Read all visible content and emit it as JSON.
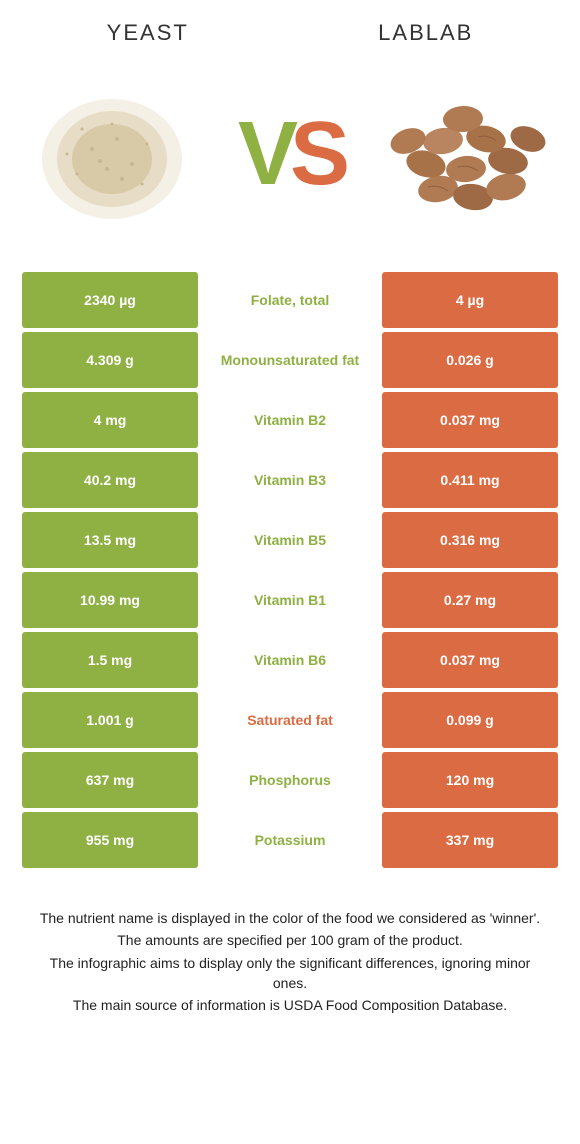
{
  "foods": {
    "left": {
      "name": "YEAST",
      "color": "#8fb043"
    },
    "right": {
      "name": "LABLAB",
      "color": "#db6b42"
    }
  },
  "vs": {
    "v": "V",
    "s": "S"
  },
  "rows": [
    {
      "left": "2340 µg",
      "label": "Folate, total",
      "right": "4 µg",
      "winner": "left"
    },
    {
      "left": "4.309 g",
      "label": "Monounsaturated fat",
      "right": "0.026 g",
      "winner": "left"
    },
    {
      "left": "4 mg",
      "label": "Vitamin B2",
      "right": "0.037 mg",
      "winner": "left"
    },
    {
      "left": "40.2 mg",
      "label": "Vitamin B3",
      "right": "0.411 mg",
      "winner": "left"
    },
    {
      "left": "13.5 mg",
      "label": "Vitamin B5",
      "right": "0.316 mg",
      "winner": "left"
    },
    {
      "left": "10.99 mg",
      "label": "Vitamin B1",
      "right": "0.27 mg",
      "winner": "left"
    },
    {
      "left": "1.5 mg",
      "label": "Vitamin B6",
      "right": "0.037 mg",
      "winner": "left"
    },
    {
      "left": "1.001 g",
      "label": "Saturated fat",
      "right": "0.099 g",
      "winner": "right"
    },
    {
      "left": "637 mg",
      "label": "Phosphorus",
      "right": "120 mg",
      "winner": "left"
    },
    {
      "left": "955 mg",
      "label": "Potassium",
      "right": "337 mg",
      "winner": "left"
    }
  ],
  "footer": [
    "The nutrient name is displayed in the color of the food we considered as 'winner'.",
    "The amounts are specified per 100 gram of the product.",
    "The infographic aims to display only the significant differences, ignoring minor ones.",
    "The main source of information is USDA Food Composition Database."
  ]
}
